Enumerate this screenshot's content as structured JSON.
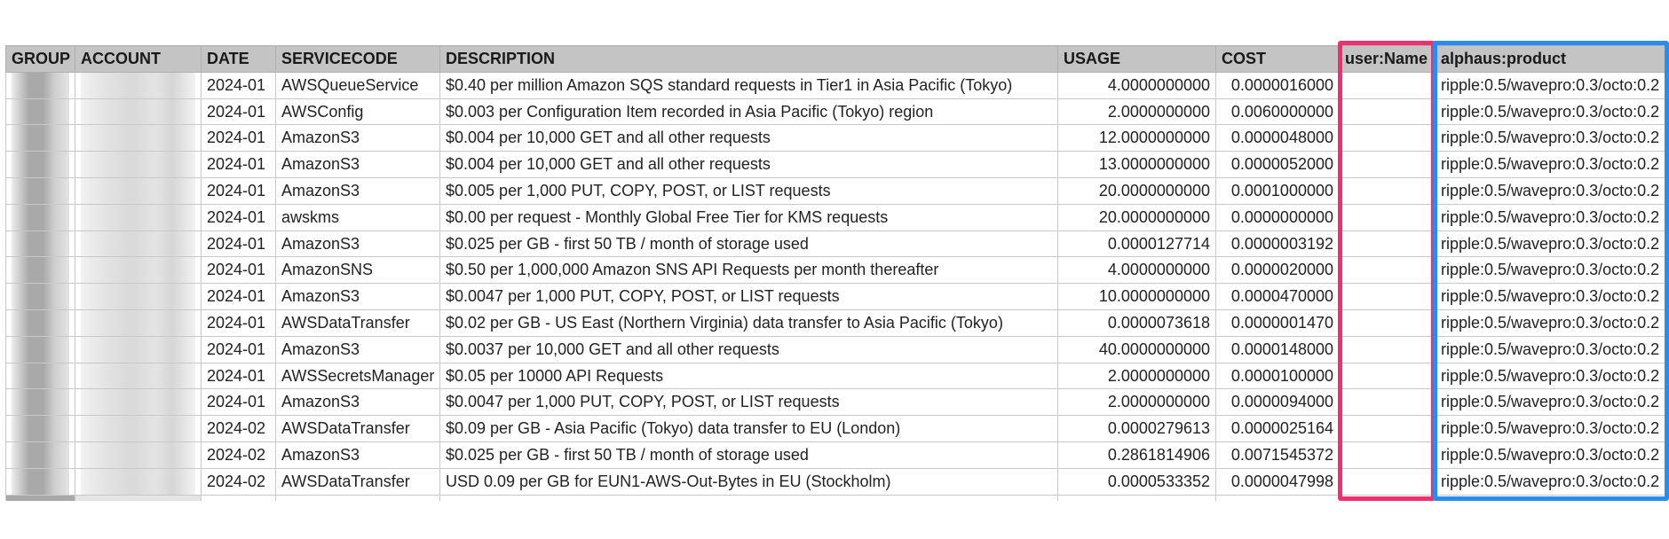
{
  "columns": [
    "GROUP",
    "ACCOUNT",
    "DATE",
    "SERVICECODE",
    "DESCRIPTION",
    "USAGE",
    "COST",
    "user:Name",
    "alphaus:product"
  ],
  "rows": [
    {
      "date": "2024-01",
      "service": "AWSQueueService",
      "description": "$0.40 per million Amazon SQS standard requests in Tier1 in Asia Pacific (Tokyo)",
      "usage": "4.0000000000",
      "cost": "0.0000016000",
      "user_name": "",
      "product": "ripple:0.5/wavepro:0.3/octo:0.2"
    },
    {
      "date": "2024-01",
      "service": "AWSConfig",
      "description": "$0.003 per  Configuration Item recorded in Asia Pacific (Tokyo) region",
      "usage": "2.0000000000",
      "cost": "0.0060000000",
      "user_name": "",
      "product": "ripple:0.5/wavepro:0.3/octo:0.2"
    },
    {
      "date": "2024-01",
      "service": "AmazonS3",
      "description": "$0.004 per 10,000 GET and all other requests",
      "usage": "12.0000000000",
      "cost": "0.0000048000",
      "user_name": "",
      "product": "ripple:0.5/wavepro:0.3/octo:0.2"
    },
    {
      "date": "2024-01",
      "service": "AmazonS3",
      "description": "$0.004 per 10,000 GET and all other requests",
      "usage": "13.0000000000",
      "cost": "0.0000052000",
      "user_name": "",
      "product": "ripple:0.5/wavepro:0.3/octo:0.2"
    },
    {
      "date": "2024-01",
      "service": "AmazonS3",
      "description": "$0.005 per 1,000 PUT, COPY, POST, or LIST requests",
      "usage": "20.0000000000",
      "cost": "0.0001000000",
      "user_name": "",
      "product": "ripple:0.5/wavepro:0.3/octo:0.2"
    },
    {
      "date": "2024-01",
      "service": "awskms",
      "description": "$0.00 per request - Monthly Global Free Tier for KMS requests",
      "usage": "20.0000000000",
      "cost": "0.0000000000",
      "user_name": "",
      "product": "ripple:0.5/wavepro:0.3/octo:0.2"
    },
    {
      "date": "2024-01",
      "service": "AmazonS3",
      "description": "$0.025 per GB - first 50 TB / month of storage used",
      "usage": "0.0000127714",
      "cost": "0.0000003192",
      "user_name": "",
      "product": "ripple:0.5/wavepro:0.3/octo:0.2"
    },
    {
      "date": "2024-01",
      "service": "AmazonSNS",
      "description": "$0.50 per 1,000,000 Amazon SNS API Requests per month thereafter",
      "usage": "4.0000000000",
      "cost": "0.0000020000",
      "user_name": "",
      "product": "ripple:0.5/wavepro:0.3/octo:0.2"
    },
    {
      "date": "2024-01",
      "service": "AmazonS3",
      "description": "$0.0047 per 1,000 PUT, COPY, POST, or LIST requests",
      "usage": "10.0000000000",
      "cost": "0.0000470000",
      "user_name": "",
      "product": "ripple:0.5/wavepro:0.3/octo:0.2"
    },
    {
      "date": "2024-01",
      "service": "AWSDataTransfer",
      "description": "$0.02 per GB - US East (Northern Virginia) data transfer to Asia Pacific (Tokyo)",
      "usage": "0.0000073618",
      "cost": "0.0000001470",
      "user_name": "",
      "product": "ripple:0.5/wavepro:0.3/octo:0.2"
    },
    {
      "date": "2024-01",
      "service": "AmazonS3",
      "description": "$0.0037 per 10,000 GET and all other requests",
      "usage": "40.0000000000",
      "cost": "0.0000148000",
      "user_name": "",
      "product": "ripple:0.5/wavepro:0.3/octo:0.2"
    },
    {
      "date": "2024-01",
      "service": "AWSSecretsManager",
      "description": "$0.05 per 10000 API Requests",
      "usage": "2.0000000000",
      "cost": "0.0000100000",
      "user_name": "",
      "product": "ripple:0.5/wavepro:0.3/octo:0.2"
    },
    {
      "date": "2024-01",
      "service": "AmazonS3",
      "description": "$0.0047 per 1,000 PUT, COPY, POST, or LIST requests",
      "usage": "2.0000000000",
      "cost": "0.0000094000",
      "user_name": "",
      "product": "ripple:0.5/wavepro:0.3/octo:0.2"
    },
    {
      "date": "2024-02",
      "service": "AWSDataTransfer",
      "description": "$0.09 per GB - Asia Pacific (Tokyo) data transfer to EU (London)",
      "usage": "0.0000279613",
      "cost": "0.0000025164",
      "user_name": "",
      "product": "ripple:0.5/wavepro:0.3/octo:0.2"
    },
    {
      "date": "2024-02",
      "service": "AmazonS3",
      "description": "$0.025 per GB - first 50 TB / month of storage used",
      "usage": "0.2861814906",
      "cost": "0.0071545372",
      "user_name": "",
      "product": "ripple:0.5/wavepro:0.3/octo:0.2"
    },
    {
      "date": "2024-02",
      "service": "AWSDataTransfer",
      "description": "USD 0.09 per GB for EUN1-AWS-Out-Bytes in EU (Stockholm)",
      "usage": "0.0000533352",
      "cost": "0.0000047998",
      "user_name": "",
      "product": "ripple:0.5/wavepro:0.3/octo:0.2"
    }
  ],
  "colors": {
    "header_bg": "#c4c4c4",
    "grid_line": "#c8c8c8",
    "highlight_username": "#f0306e",
    "highlight_product": "#2a8cf0",
    "redaction_dark": "#a9a9a9",
    "redaction_light": "#e4e4e4"
  }
}
